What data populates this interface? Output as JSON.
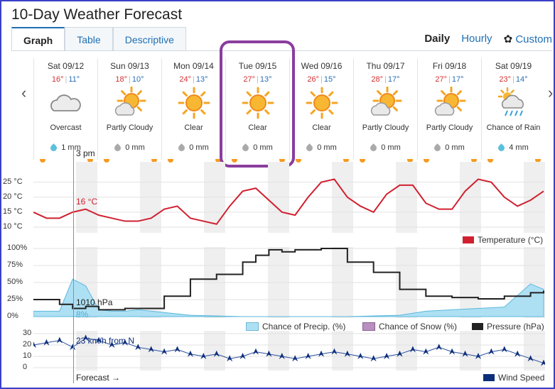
{
  "page": {
    "title": "10-Day Weather Forecast"
  },
  "tabs": [
    {
      "label": "Graph",
      "active": true
    },
    {
      "label": "Table",
      "active": false
    },
    {
      "label": "Descriptive",
      "active": false
    }
  ],
  "view": {
    "daily": "Daily",
    "hourly": "Hourly",
    "custom": "Custom"
  },
  "days": [
    {
      "date": "Sat 09/12",
      "hi": "16°",
      "lo": "11°",
      "condition": "Overcast",
      "icon": "cloud-icon",
      "precip": "1 mm",
      "rain": true
    },
    {
      "date": "Sun 09/13",
      "hi": "18°",
      "lo": "10°",
      "condition": "Partly Cloudy",
      "icon": "partly-cloudy-icon",
      "precip": "0 mm",
      "rain": false
    },
    {
      "date": "Mon 09/14",
      "hi": "24°",
      "lo": "13°",
      "condition": "Clear",
      "icon": "sun-icon",
      "precip": "0 mm",
      "rain": false
    },
    {
      "date": "Tue 09/15",
      "hi": "27°",
      "lo": "13°",
      "condition": "Clear",
      "icon": "sun-icon",
      "precip": "0 mm",
      "rain": false
    },
    {
      "date": "Wed 09/16",
      "hi": "26°",
      "lo": "15°",
      "condition": "Clear",
      "icon": "sun-icon",
      "precip": "0 mm",
      "rain": false
    },
    {
      "date": "Thu 09/17",
      "hi": "28°",
      "lo": "17°",
      "condition": "Partly Cloudy",
      "icon": "partly-cloudy-icon",
      "precip": "0 mm",
      "rain": false
    },
    {
      "date": "Fri 09/18",
      "hi": "27°",
      "lo": "17°",
      "condition": "Partly Cloudy",
      "icon": "partly-cloudy-icon",
      "precip": "0 mm",
      "rain": false
    },
    {
      "date": "Sat 09/19",
      "hi": "23°",
      "lo": "14°",
      "condition": "Chance of Rain",
      "icon": "rain-icon",
      "precip": "4 mm",
      "rain": true
    }
  ],
  "cursor": {
    "time": "3 pm",
    "temp": "16 °C",
    "pressure": "1010 hPa",
    "precip_chance": "8%",
    "wind": "23 km/h from N",
    "forecast": "Forecast →"
  },
  "colors": {
    "temp": "#d02030",
    "precip": "#aee0f4",
    "snow": "#b88fbf",
    "pressure": "#222222",
    "wind": "#0d2f7a",
    "cursor": "#e07a2a"
  },
  "chart_data": [
    {
      "type": "line",
      "ylabel": "Temperature (°C)",
      "yticks": [
        "25 °C",
        "20 °C",
        "15 °C",
        "10 °C"
      ],
      "ylim": [
        10,
        28
      ],
      "legend": "Temperature (°C)",
      "x": [
        0,
        6,
        12,
        18,
        24,
        30,
        36,
        42,
        48,
        54,
        60,
        66,
        72,
        78,
        84,
        90,
        96,
        102,
        108,
        114,
        120,
        126,
        132,
        138,
        144,
        150,
        156,
        162,
        168,
        174,
        180,
        186,
        192,
        198,
        204,
        210,
        216,
        222,
        228,
        234
      ],
      "values": [
        15,
        13,
        13,
        15,
        16,
        14,
        13,
        12,
        12,
        13,
        16,
        17,
        13,
        12,
        11,
        17,
        22,
        23,
        19,
        15,
        14,
        20,
        25,
        26,
        20,
        17,
        15,
        21,
        24,
        24,
        18,
        16,
        16,
        22,
        26,
        25,
        20,
        17,
        19,
        22
      ]
    },
    {
      "type": "area",
      "ylabel": "",
      "yticks": [
        "100%",
        "75%",
        "50%",
        "25%",
        "0%"
      ],
      "ylim": [
        0,
        100
      ],
      "legend": [
        "Chance of Precip. (%)",
        "Chance of Snow (%)",
        "Pressure (hPa)"
      ],
      "x_precip": [
        0,
        12,
        18,
        24,
        30,
        36,
        42,
        48,
        72,
        96,
        120,
        144,
        168,
        180,
        192,
        204,
        216,
        228,
        234
      ],
      "precip": [
        8,
        8,
        55,
        45,
        10,
        8,
        8,
        10,
        2,
        0,
        0,
        0,
        2,
        8,
        10,
        12,
        14,
        48,
        40
      ],
      "pressure_x": [
        0,
        12,
        18,
        24,
        30,
        42,
        48,
        60,
        72,
        84,
        96,
        102,
        108,
        114,
        120,
        132,
        144,
        156,
        168,
        180,
        192,
        204,
        216,
        228,
        234
      ],
      "pressure": [
        25,
        18,
        12,
        15,
        10,
        12,
        12,
        30,
        55,
        62,
        80,
        90,
        98,
        95,
        98,
        100,
        80,
        65,
        40,
        30,
        28,
        26,
        30,
        35,
        38
      ]
    },
    {
      "type": "line",
      "ylabel": "",
      "yticks": [
        "30",
        "20",
        "10",
        "0"
      ],
      "ylim": [
        0,
        30
      ],
      "legend": "Wind Speed",
      "x": [
        0,
        6,
        12,
        18,
        24,
        30,
        36,
        42,
        48,
        54,
        60,
        66,
        72,
        78,
        84,
        90,
        96,
        102,
        108,
        114,
        120,
        126,
        132,
        138,
        144,
        150,
        156,
        162,
        168,
        174,
        180,
        186,
        192,
        198,
        204,
        210,
        216,
        222,
        228,
        234
      ],
      "values": [
        20,
        22,
        24,
        18,
        26,
        24,
        20,
        22,
        18,
        16,
        14,
        16,
        12,
        10,
        12,
        8,
        10,
        14,
        12,
        10,
        8,
        10,
        12,
        14,
        12,
        10,
        8,
        10,
        12,
        16,
        14,
        18,
        14,
        12,
        10,
        14,
        16,
        12,
        8,
        4
      ]
    }
  ]
}
